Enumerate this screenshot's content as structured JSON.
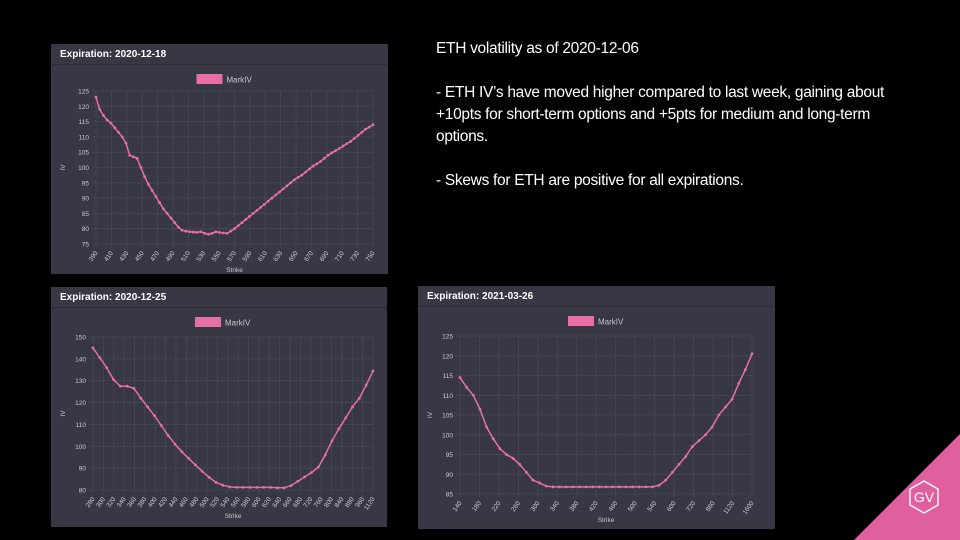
{
  "commentary": {
    "heading": "ETH volatility as of 2020-12-06",
    "bullet1": "- ETH IV’s have moved higher compared to last week, gaining about +10pts for short-term options and +5pts for medium and long-term options.",
    "bullet2": "- Skews for ETH are positive for all expirations."
  },
  "logo": {
    "text": "GV",
    "color": "#e0609f"
  },
  "colors": {
    "series": "#e76fa5",
    "panel_bg": "#373843",
    "grid": "#474856",
    "axis_text": "#c8c8d0"
  },
  "chart_data": [
    {
      "type": "line",
      "title": "Expiration: 2020-12-18",
      "xlabel": "Strike",
      "ylabel": "IV",
      "legend": "top-center",
      "grid": true,
      "ylim": [
        75,
        125
      ],
      "yticks": [
        75,
        80,
        85,
        90,
        95,
        100,
        105,
        110,
        115,
        120,
        125
      ],
      "x_tick_labels": [
        "390",
        "410",
        "430",
        "450",
        "470",
        "490",
        "510",
        "530",
        "550",
        "570",
        "590",
        "610",
        "630",
        "650",
        "670",
        "690",
        "710",
        "730",
        "750"
      ],
      "series": [
        {
          "name": "MarkIV",
          "x": [
            390,
            395,
            400,
            405,
            410,
            415,
            420,
            425,
            430,
            435,
            440,
            445,
            450,
            455,
            460,
            465,
            470,
            475,
            480,
            485,
            490,
            495,
            500,
            505,
            510,
            515,
            520,
            525,
            530,
            535,
            540,
            545,
            550,
            555,
            560,
            565,
            570,
            575,
            580,
            585,
            590,
            595,
            600,
            605,
            610,
            615,
            620,
            625,
            630,
            635,
            640,
            645,
            650,
            655,
            660,
            665,
            670,
            675,
            680,
            685,
            690,
            695,
            700,
            705,
            710,
            715,
            720,
            725,
            730,
            735,
            740,
            745,
            750,
            755,
            760
          ],
          "values": [
            123,
            119,
            117,
            115.5,
            114.5,
            113,
            111.5,
            110,
            108,
            104,
            103.5,
            103,
            100,
            97,
            94.5,
            92.5,
            90.5,
            88.5,
            86.5,
            85,
            83.5,
            82,
            80.5,
            79.5,
            79.2,
            79,
            78.9,
            78.8,
            79,
            78.5,
            78.2,
            78.5,
            79,
            78.8,
            78.6,
            78.5,
            79.2,
            80,
            81,
            82,
            83,
            84,
            85,
            86,
            87,
            88,
            89,
            90,
            91,
            92,
            93,
            94,
            95,
            96,
            96.8,
            97.5,
            98.5,
            99.5,
            100.5,
            101.2,
            102,
            103,
            104,
            104.8,
            105.5,
            106.2,
            107,
            107.8,
            108.5,
            109.5,
            110.5,
            111.5,
            112.5,
            113.2,
            114
          ]
        }
      ]
    },
    {
      "type": "line",
      "title": "Expiration: 2020-12-25",
      "xlabel": "Strike",
      "ylabel": "IV",
      "legend": "top-center",
      "grid": true,
      "ylim": [
        80,
        150
      ],
      "yticks": [
        80,
        90,
        100,
        110,
        120,
        130,
        140,
        150
      ],
      "x_tick_labels": [
        "280",
        "300",
        "320",
        "340",
        "360",
        "380",
        "400",
        "420",
        "440",
        "460",
        "480",
        "500",
        "520",
        "540",
        "560",
        "580",
        "600",
        "620",
        "640",
        "660",
        "680",
        "720",
        "760",
        "800",
        "840",
        "880",
        "960",
        "1120"
      ],
      "series": [
        {
          "name": "MarkIV",
          "values": [
            145,
            140.5,
            136,
            130.5,
            127.5,
            127.5,
            126.5,
            122,
            118,
            114,
            109.5,
            105,
            101,
            97.5,
            94.5,
            91.5,
            88.5,
            85.8,
            83.5,
            82.2,
            81.4,
            81.2,
            81.2,
            81.2,
            81.2,
            81.2,
            81.2,
            81,
            81,
            82,
            84,
            86,
            88,
            90.5,
            96,
            102.5,
            108,
            113,
            118,
            122,
            128,
            134.5
          ]
        }
      ]
    },
    {
      "type": "line",
      "title": "Expiration: 2021-03-26",
      "xlabel": "Strike",
      "ylabel": "IV",
      "legend": "top-center",
      "grid": true,
      "ylim": [
        85,
        125
      ],
      "yticks": [
        85,
        90,
        95,
        100,
        105,
        110,
        115,
        120,
        125
      ],
      "x_tick_labels": [
        "140",
        "180",
        "220",
        "260",
        "300",
        "340",
        "380",
        "420",
        "460",
        "500",
        "540",
        "600",
        "720",
        "880",
        "1120",
        "1600"
      ],
      "series": [
        {
          "name": "MarkIV",
          "values": [
            114.5,
            112,
            110,
            106.5,
            102,
            99,
            96.5,
            95,
            94,
            92.5,
            90.5,
            88.5,
            87.8,
            87,
            86.8,
            86.8,
            86.8,
            86.8,
            86.8,
            86.8,
            86.8,
            86.8,
            86.8,
            86.8,
            86.8,
            86.8,
            86.8,
            86.8,
            86.8,
            86.8,
            87.2,
            88.5,
            90.5,
            92.5,
            94.5,
            97,
            98.5,
            100,
            102,
            105,
            107,
            109,
            113,
            116.5,
            120.5
          ]
        }
      ]
    }
  ]
}
